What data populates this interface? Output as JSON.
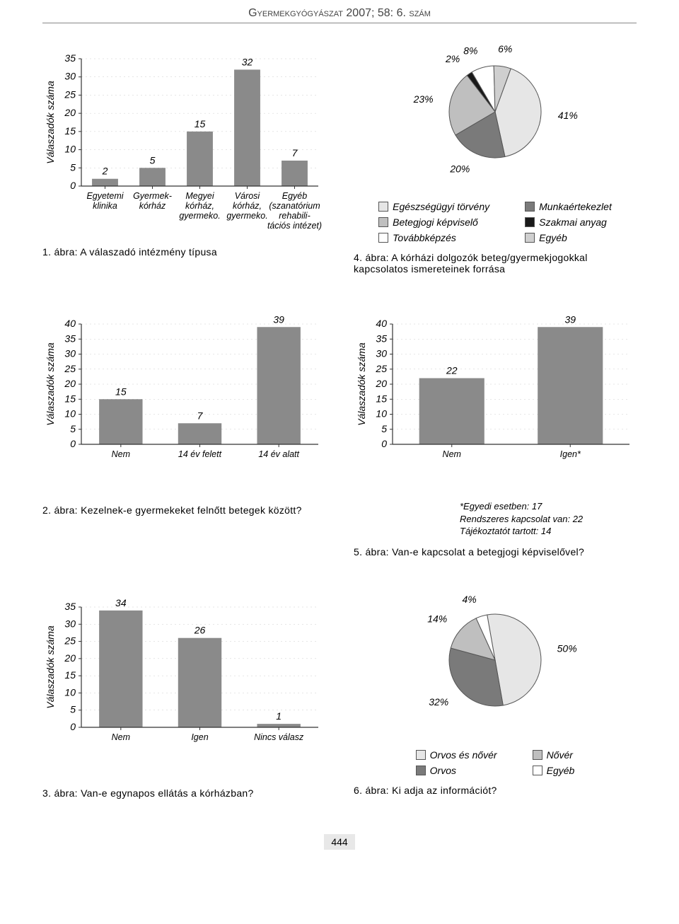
{
  "page": {
    "header": "Gyermekgyógyászat 2007; 58: 6. szám",
    "page_number": "444"
  },
  "colors": {
    "bar_fill": "#8a8a8a",
    "axis": "#333333",
    "grid": "#cccccc",
    "pie_outline": "#555555",
    "slice_light": "#e6e6e6",
    "slice_mid": "#bfbfbf",
    "slice_dark": "#7a7a7a",
    "slice_black": "#1a1a1a",
    "slice_white": "#ffffff"
  },
  "fig1": {
    "caption": "1. ábra: A válaszadó intézmény típusa",
    "y_label": "Válaszadók száma",
    "y_max": 35,
    "y_step": 5,
    "bars": [
      {
        "label": "Egyetemi\nklinika",
        "value": 2
      },
      {
        "label": "Gyermek-\nkórház",
        "value": 5
      },
      {
        "label": "Megyei\nkórház,\ngyermeko.",
        "value": 15
      },
      {
        "label": "Városi\nkórház,\ngyermeko.",
        "value": 32
      },
      {
        "label": "Egyéb\n(szanatórium\nrehabili-\ntációs intézet)",
        "value": 7
      }
    ]
  },
  "fig4": {
    "caption": "4. ábra: A kórházi dolgozók beteg/gyermekjogokkal kapcsolatos ismereteinek forrása",
    "slices": [
      {
        "label": "Egészségügyi törvény",
        "value": 41,
        "color": "#e6e6e6",
        "text": "41%"
      },
      {
        "label": "Munkaértekezlet",
        "value": 20,
        "color": "#7a7a7a",
        "text": "20%"
      },
      {
        "label": "Betegjogi képviselő",
        "value": 23,
        "color": "#bfbfbf",
        "text": "23%"
      },
      {
        "label": "Szakmai anyag",
        "value": 2,
        "color": "#1a1a1a",
        "text": "2%"
      },
      {
        "label": "Továbbképzés",
        "value": 8,
        "color": "#ffffff",
        "text": "8%"
      },
      {
        "label": "Egyéb",
        "value": 6,
        "color": "#cfcfcf",
        "text": "6%"
      }
    ],
    "legend_left": [
      "Egészségügyi törvény",
      "Betegjogi képviselő",
      "Továbbképzés"
    ],
    "legend_right": [
      "Munkaértekezlet",
      "Szakmai anyag",
      "Egyéb"
    ],
    "legend_colors_left": [
      "#e6e6e6",
      "#bfbfbf",
      "#ffffff"
    ],
    "legend_colors_right": [
      "#7a7a7a",
      "#1a1a1a",
      "#cfcfcf"
    ]
  },
  "fig2": {
    "caption": "2. ábra: Kezelnek-e gyermekeket felnőtt betegek között?",
    "y_label": "Válaszadók száma",
    "y_max": 40,
    "y_step": 5,
    "bars": [
      {
        "label": "Nem",
        "value": 15
      },
      {
        "label": "14 év felett",
        "value": 7
      },
      {
        "label": "14 év alatt",
        "value": 39
      }
    ]
  },
  "fig5": {
    "caption": "5. ábra: Van-e kapcsolat a betegjogi képviselővel?",
    "y_label": "Válaszadók száma",
    "y_max": 40,
    "y_step": 5,
    "bars": [
      {
        "label": "Nem",
        "value": 22
      },
      {
        "label": "Igen*",
        "value": 39
      }
    ],
    "footnote": "*Egyedi esetben: 17\nRendszeres kapcsolat van: 22\nTájékoztatót tartott: 14"
  },
  "fig3": {
    "caption": "3. ábra: Van-e egynapos ellátás a kórházban?",
    "y_label": "Válaszadók száma",
    "y_max": 35,
    "y_step": 5,
    "bars": [
      {
        "label": "Nem",
        "value": 34
      },
      {
        "label": "Igen",
        "value": 26
      },
      {
        "label": "Nincs válasz",
        "value": 1
      }
    ]
  },
  "fig6": {
    "caption": "6. ábra: Ki adja az információt?",
    "slices": [
      {
        "label": "Orvos és nővér",
        "value": 50,
        "color": "#e6e6e6",
        "text": "50%"
      },
      {
        "label": "Orvos",
        "value": 32,
        "color": "#7a7a7a",
        "text": "32%"
      },
      {
        "label": "Nővér",
        "value": 14,
        "color": "#bfbfbf",
        "text": "14%"
      },
      {
        "label": "Egyéb",
        "value": 4,
        "color": "#ffffff",
        "text": "4%"
      }
    ],
    "legend_left": [
      "Orvos és nővér",
      "Orvos"
    ],
    "legend_right": [
      "Nővér",
      "Egyéb"
    ],
    "legend_colors_left": [
      "#e6e6e6",
      "#7a7a7a"
    ],
    "legend_colors_right": [
      "#bfbfbf",
      "#ffffff"
    ]
  }
}
